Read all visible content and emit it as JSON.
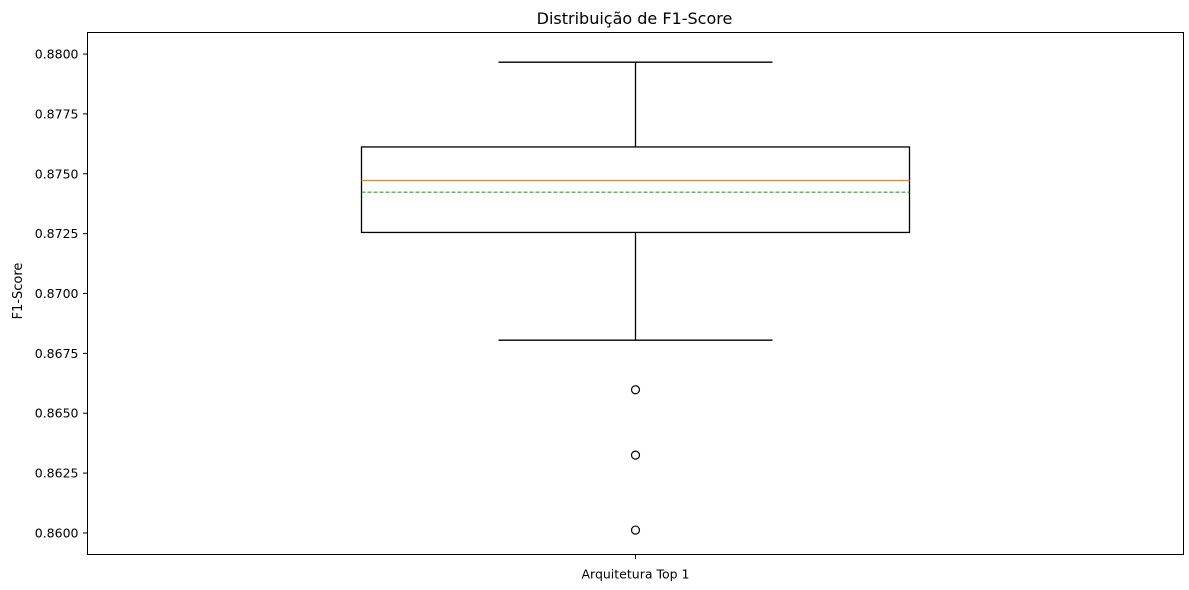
{
  "chart_data": {
    "type": "box",
    "title": "Distribuição de F1-Score",
    "xlabel": "",
    "ylabel": "F1-Score",
    "categories": [
      "Arquitetura Top 1"
    ],
    "ylim": [
      0.8591,
      0.8809
    ],
    "yticks": [
      0.86,
      0.8625,
      0.865,
      0.8675,
      0.87,
      0.8725,
      0.875,
      0.8775,
      0.88
    ],
    "ytick_labels": [
      "0.8600",
      "0.8625",
      "0.8650",
      "0.8675",
      "0.8700",
      "0.8725",
      "0.8750",
      "0.8775",
      "0.8800"
    ],
    "grid": false,
    "boxes": [
      {
        "category": "Arquitetura Top 1",
        "whisker_low": 0.86805,
        "q1": 0.87255,
        "median": 0.87472,
        "mean": 0.87423,
        "q3": 0.87612,
        "whisker_high": 0.87966,
        "outliers": [
          0.86598,
          0.86325,
          0.86012
        ]
      }
    ],
    "colors": {
      "box": "#000000",
      "median": "#ff7f0e",
      "mean": "#2ca02c",
      "outlier": "#000000"
    }
  }
}
